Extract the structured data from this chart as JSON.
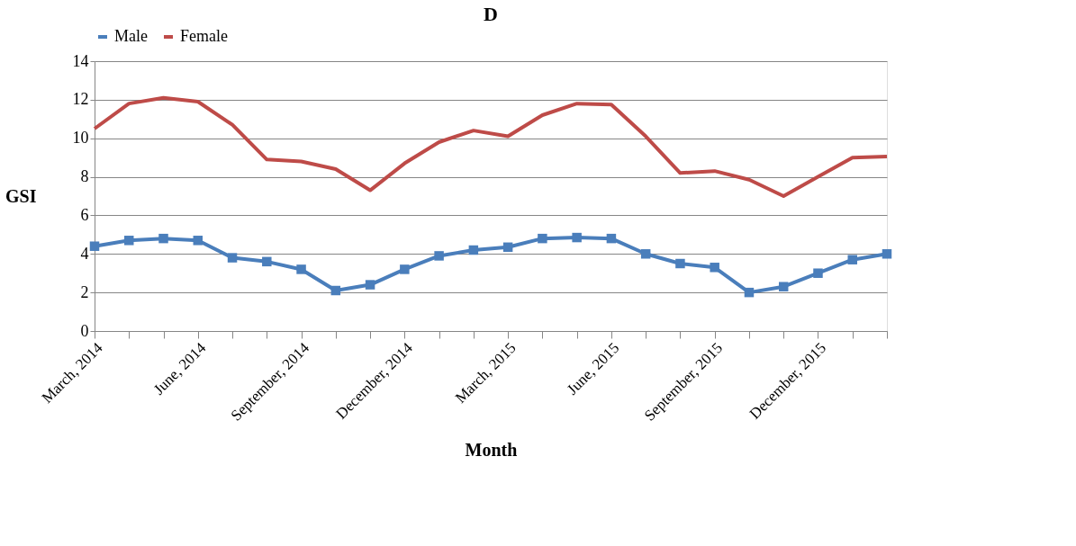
{
  "chart_data": {
    "type": "line",
    "title": "D",
    "xlabel": "Month",
    "ylabel": "GSI",
    "categories": [
      "March, 2014",
      null,
      null,
      "June, 2014",
      null,
      null,
      "September, 2014",
      null,
      null,
      "December, 2014",
      null,
      null,
      "March, 2015",
      null,
      null,
      "June, 2015",
      null,
      null,
      "September, 2015",
      null,
      null,
      "December, 2015",
      null,
      null
    ],
    "series": [
      {
        "name": "Male",
        "color": "#4a7ebb",
        "marker": "square",
        "values": [
          4.4,
          4.7,
          4.8,
          4.7,
          3.8,
          3.6,
          3.2,
          2.1,
          2.4,
          3.2,
          3.9,
          4.2,
          4.35,
          4.8,
          4.85,
          4.8,
          4.0,
          3.5,
          3.3,
          2.0,
          2.3,
          3.0,
          3.7,
          4.0
        ]
      },
      {
        "name": "Female",
        "color": "#be4b48",
        "marker": "none",
        "values": [
          10.5,
          11.8,
          12.1,
          11.9,
          10.7,
          8.9,
          8.8,
          8.4,
          7.3,
          8.7,
          9.8,
          10.4,
          10.1,
          11.2,
          11.8,
          11.75,
          10.1,
          8.2,
          8.3,
          7.85,
          7.0,
          8.0,
          9.0,
          9.05
        ]
      }
    ],
    "ylim": [
      0,
      14
    ],
    "yticks": [
      0,
      2,
      4,
      6,
      8,
      10,
      12,
      14
    ],
    "grid": "y",
    "legend": "top",
    "line_style": "solid"
  }
}
